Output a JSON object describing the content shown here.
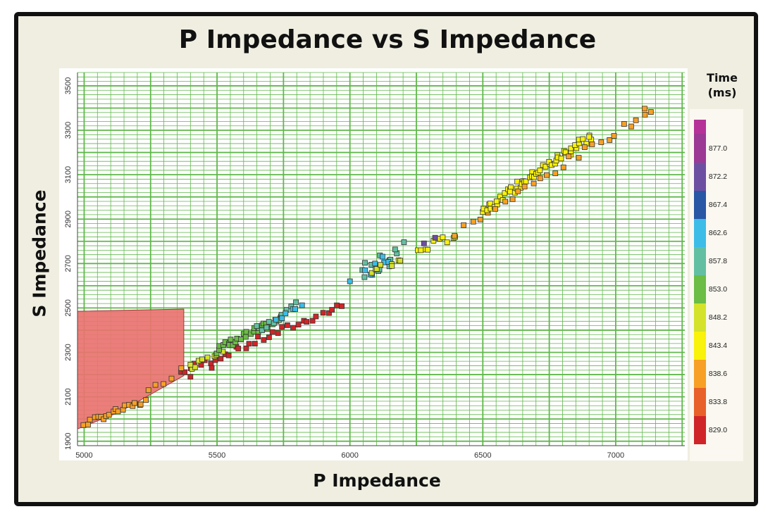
{
  "title": "P Impedance vs S Impedance",
  "colors": {
    "frame_border": "#111111",
    "background": "#efeee1",
    "plot_background": "#ffffff",
    "grid": "#5fb84a",
    "fill_region": "#e97370"
  },
  "chart_data": {
    "type": "scatter",
    "title": "P Impedance vs S Impedance",
    "xlabel": "P Impedance",
    "ylabel": "S Impedance",
    "xlim": [
      4975,
      7260
    ],
    "ylim": [
      1880,
      3560
    ],
    "x_ticks": [
      5000,
      5500,
      6000,
      6500,
      7000
    ],
    "y_ticks": [
      1900,
      2100,
      2300,
      2500,
      2700,
      2900,
      3100,
      3300,
      3500
    ],
    "grid": true,
    "minor_grid": true,
    "legend": {
      "title_line1": "Time",
      "title_line2": "(ms)",
      "placement": "right",
      "bins": [
        {
          "label": "829.0",
          "color": "#cf2528"
        },
        {
          "label": "833.8",
          "color": "#e8612a"
        },
        {
          "label": "838.6",
          "color": "#f7a025"
        },
        {
          "label": "843.4",
          "color": "#f9f20a"
        },
        {
          "label": "848.2",
          "color": "#d4e22a"
        },
        {
          "label": "853.0",
          "color": "#6bbd45"
        },
        {
          "label": "857.8",
          "color": "#63bfa2"
        },
        {
          "label": "862.6",
          "color": "#3cbde8"
        },
        {
          "label": "867.4",
          "color": "#2857a6"
        },
        {
          "label": "872.2",
          "color": "#6d4fa2"
        },
        {
          "label": "877.0",
          "color": "#9b3995"
        }
      ],
      "top_color": "#b53298"
    },
    "shaded_region": [
      [
        4975,
        2485
      ],
      [
        5375,
        2495
      ],
      [
        5375,
        2195
      ],
      [
        5130,
        2030
      ],
      [
        4975,
        1955
      ]
    ],
    "series_groups": [
      {
        "bin": 0,
        "from": [
          5365,
          2210
        ],
        "to": [
          5970,
          2510
        ],
        "n": 34,
        "jitter": 0.012
      },
      {
        "bin": 2,
        "from": [
          5000,
          1980
        ],
        "to": [
          5230,
          2080
        ],
        "n": 20,
        "jitter": 0.01
      },
      {
        "bin": 2,
        "from": [
          5240,
          2120
        ],
        "to": [
          5365,
          2220
        ],
        "n": 5,
        "jitter": 0.01
      },
      {
        "bin": 4,
        "from": [
          5400,
          2240
        ],
        "to": [
          5520,
          2320
        ],
        "n": 8,
        "jitter": 0.015
      },
      {
        "bin": 5,
        "from": [
          5500,
          2310
        ],
        "to": [
          5740,
          2450
        ],
        "n": 30,
        "jitter": 0.014
      },
      {
        "bin": 6,
        "from": [
          5650,
          2400
        ],
        "to": [
          5800,
          2510
        ],
        "n": 10,
        "jitter": 0.014
      },
      {
        "bin": 7,
        "from": [
          5720,
          2450
        ],
        "to": [
          5820,
          2520
        ],
        "n": 6,
        "jitter": 0.012
      },
      {
        "bin": 6,
        "from": [
          6050,
          2670
        ],
        "to": [
          6190,
          2760
        ],
        "n": 14,
        "jitter": 0.03
      },
      {
        "bin": 7,
        "from": [
          6060,
          2640
        ],
        "to": [
          6150,
          2730
        ],
        "n": 7,
        "jitter": 0.025
      },
      {
        "bin": 4,
        "from": [
          6070,
          2650
        ],
        "to": [
          6200,
          2720
        ],
        "n": 8,
        "jitter": 0.025
      },
      {
        "bin": 3,
        "from": [
          6250,
          2750
        ],
        "to": [
          6400,
          2830
        ],
        "n": 10,
        "jitter": 0.015
      },
      {
        "bin": 2,
        "from": [
          6400,
          2830
        ],
        "to": [
          6520,
          2940
        ],
        "n": 5,
        "jitter": 0.012
      },
      {
        "bin": 3,
        "from": [
          6500,
          2940
        ],
        "to": [
          6900,
          3270
        ],
        "n": 55,
        "jitter": 0.016
      },
      {
        "bin": 2,
        "from": [
          6550,
          2950
        ],
        "to": [
          7140,
          3400
        ],
        "n": 22,
        "jitter": 0.014
      },
      {
        "bin": 9,
        "from": [
          6280,
          2790
        ],
        "to": [
          6320,
          2820
        ],
        "n": 2,
        "jitter": 0.004
      }
    ],
    "points": [
      {
        "x": 6000,
        "y": 2620,
        "bin": 7
      },
      {
        "x": 5400,
        "y": 2190,
        "bin": 0
      },
      {
        "x": 5480,
        "y": 2230,
        "bin": 0
      },
      {
        "x": 5400,
        "y": 2245,
        "bin": 4
      },
      {
        "x": 7110,
        "y": 3370,
        "bin": 2
      },
      {
        "x": 6900,
        "y": 3270,
        "bin": 3
      }
    ]
  }
}
